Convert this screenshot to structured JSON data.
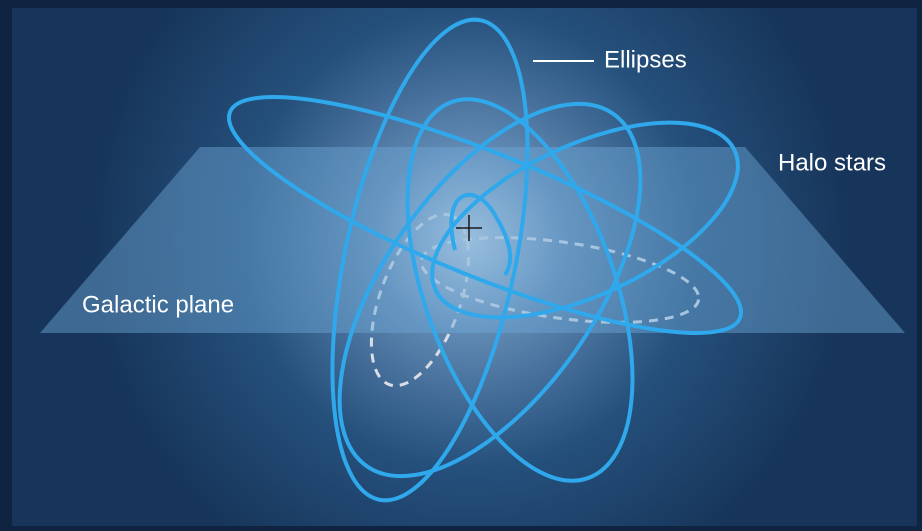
{
  "labels": {
    "ellipses": "Ellipses",
    "halo_stars": "Halo stars",
    "galactic_plane": "Galactic plane"
  }
}
